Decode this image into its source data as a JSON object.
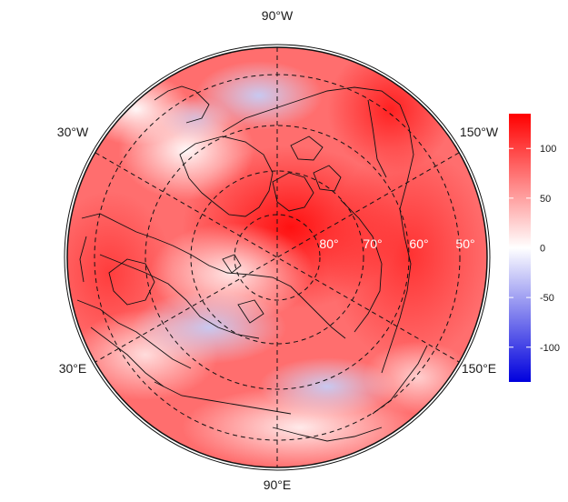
{
  "map": {
    "projection": "polar stereographic",
    "hemisphere": "north",
    "longitude_labels": [
      {
        "id": "lon-90w",
        "text": "90°W"
      },
      {
        "id": "lon-30w",
        "text": "30°W"
      },
      {
        "id": "lon-150w",
        "text": "150°W"
      },
      {
        "id": "lon-30e",
        "text": "30°E"
      },
      {
        "id": "lon-150e",
        "text": "150°E"
      },
      {
        "id": "lon-90e",
        "text": "90°E"
      }
    ],
    "latitude_labels": [
      "80°",
      "70°",
      "60°",
      "50°"
    ],
    "coastlines": "black outline",
    "graticule": "dashed"
  },
  "colorbar": {
    "min": -135,
    "max": 135,
    "ticks": [
      "100",
      "50",
      "0",
      "-50",
      "-100"
    ],
    "colors": {
      "low": "#0000dd",
      "mid": "#ffffff",
      "high": "#ff0000"
    }
  }
}
